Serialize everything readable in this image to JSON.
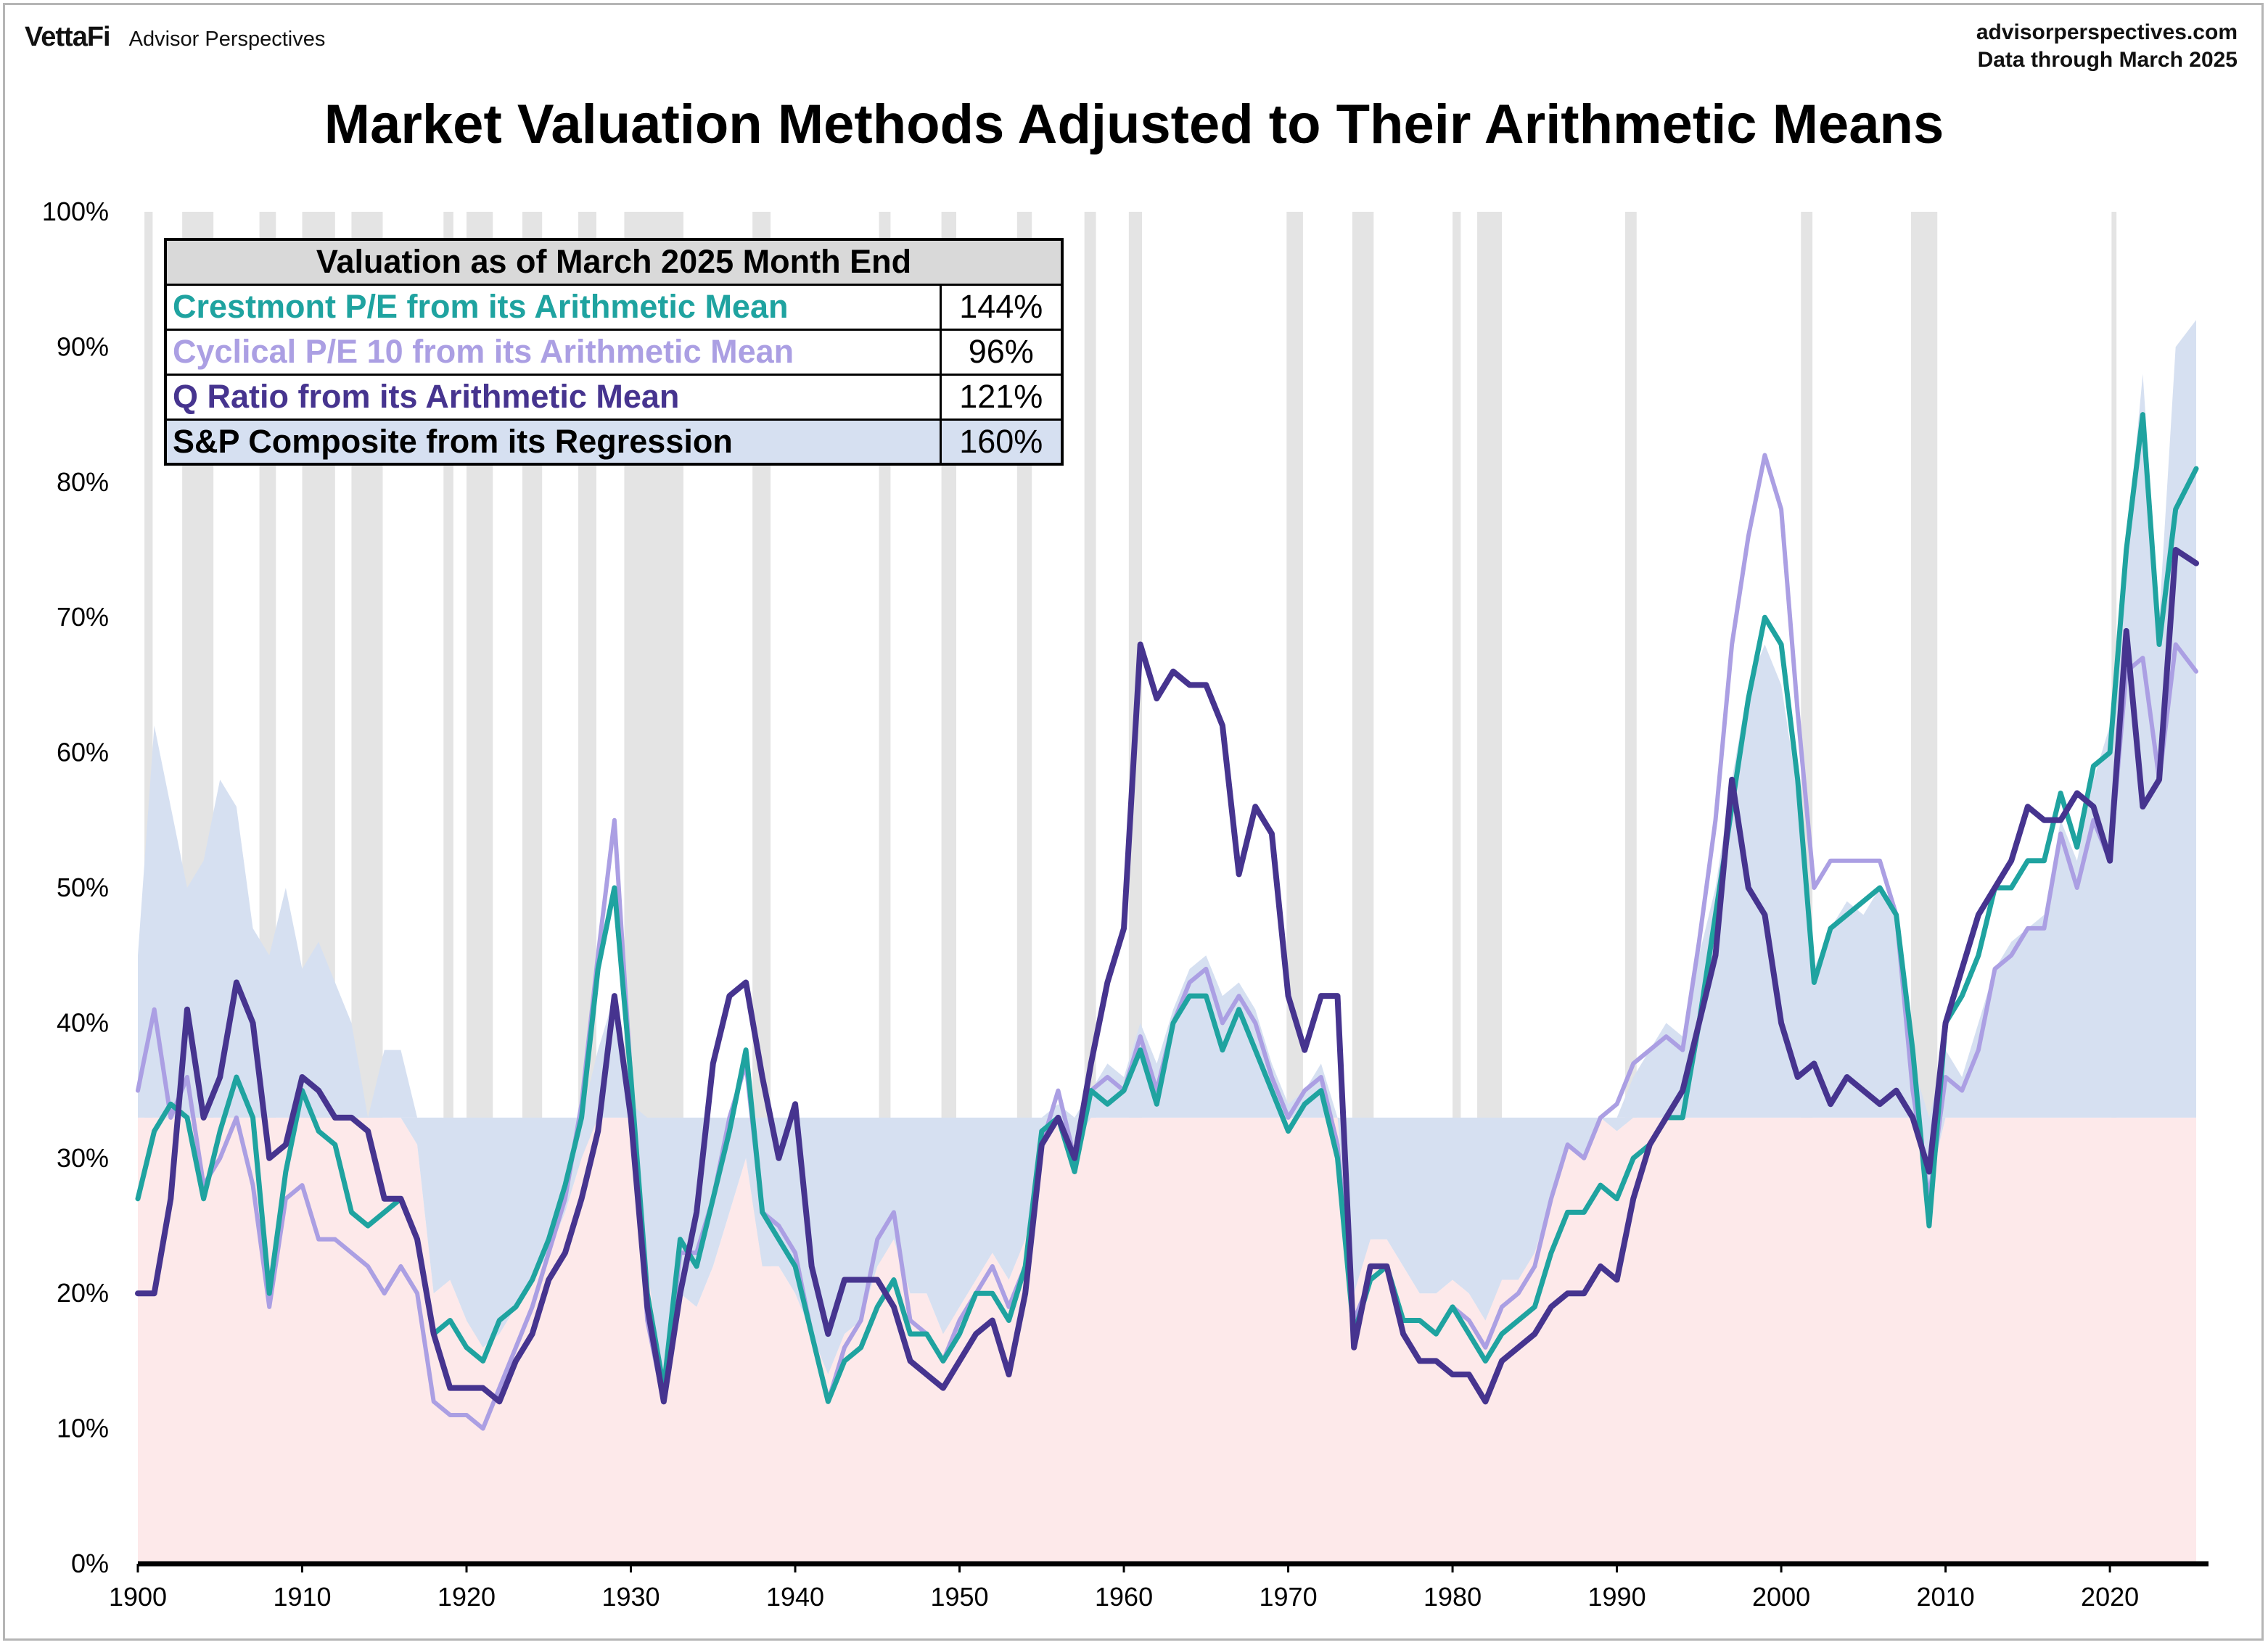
{
  "header": {
    "brand_logo": "VettaFi",
    "brand_sub": "Advisor Perspectives",
    "site": "advisorperspectives.com",
    "data_through": "Data through  March 2025",
    "title": "Market Valuation Methods Adjusted to Their Arithmetic Means"
  },
  "table": {
    "header": "Valuation as of March 2025 Month End",
    "rows": [
      {
        "label": "Crestmont P/E from its Arithmetic Mean",
        "value": "144%",
        "color": "#1fa3a0"
      },
      {
        "label": "Cyclical P/E 10 from its Arithmetic Mean",
        "value": "96%",
        "color": "#ab9fe3"
      },
      {
        "label": "Q Ratio from its Arithmetic Mean",
        "value": "121%",
        "color": "#46348f"
      },
      {
        "label": "S&P Composite from its Regression",
        "value": "160%",
        "color": "#000000"
      }
    ]
  },
  "chart_data": {
    "type": "line",
    "title": "Market Valuation Methods Adjusted to Their Arithmetic Means",
    "xlim": [
      1900,
      2026
    ],
    "ylim": [
      0,
      100
    ],
    "x_ticks": [
      "1900",
      "1910",
      "1920",
      "1930",
      "1940",
      "1950",
      "1960",
      "1970",
      "1980",
      "1990",
      "2000",
      "2010",
      "2020"
    ],
    "y_ticks": [
      "0%",
      "10%",
      "20%",
      "30%",
      "40%",
      "50%",
      "60%",
      "70%",
      "80%",
      "90%",
      "100%"
    ],
    "baseline": 33,
    "colors": {
      "crestmont": "#1fa3a0",
      "pe10": "#ab9fe3",
      "q": "#46348f",
      "sp_above": "#d6e0f1",
      "sp_below": "#fde9ea",
      "recession": "#e4e4e4"
    },
    "recessions": [
      [
        1900.4,
        1900.9
      ],
      [
        1902.7,
        1904.6
      ],
      [
        1907.4,
        1908.4
      ],
      [
        1910.0,
        1912.0
      ],
      [
        1913.0,
        1914.9
      ],
      [
        1918.6,
        1919.2
      ],
      [
        1920.0,
        1921.6
      ],
      [
        1923.4,
        1924.6
      ],
      [
        1926.8,
        1927.9
      ],
      [
        1929.6,
        1933.2
      ],
      [
        1937.4,
        1938.5
      ],
      [
        1945.1,
        1945.8
      ],
      [
        1948.9,
        1949.8
      ],
      [
        1953.5,
        1954.4
      ],
      [
        1957.6,
        1958.3
      ],
      [
        1960.3,
        1961.1
      ],
      [
        1969.9,
        1970.9
      ],
      [
        1973.9,
        1975.2
      ],
      [
        1980.0,
        1980.5
      ],
      [
        1981.5,
        1983.0
      ],
      [
        1990.5,
        1991.2
      ],
      [
        2001.2,
        2001.9
      ],
      [
        2007.9,
        2009.5
      ],
      [
        2020.1,
        2020.4
      ]
    ],
    "series": [
      {
        "name": "Crestmont P/E from its Arithmetic Mean",
        "key": "crestmont",
        "x": [
          1900,
          1901,
          1902,
          1903,
          1904,
          1905,
          1906,
          1907,
          1908,
          1909,
          1910,
          1911,
          1912,
          1913,
          1914,
          1915,
          1916,
          1917,
          1918,
          1919,
          1920,
          1921,
          1922,
          1923,
          1924,
          1925,
          1926,
          1927,
          1928,
          1929,
          1930,
          1931,
          1932,
          1933,
          1934,
          1935,
          1936,
          1937,
          1938,
          1939,
          1940,
          1941,
          1942,
          1943,
          1944,
          1945,
          1946,
          1947,
          1948,
          1949,
          1950,
          1951,
          1952,
          1953,
          1954,
          1955,
          1956,
          1957,
          1958,
          1959,
          1960,
          1961,
          1962,
          1963,
          1964,
          1965,
          1966,
          1967,
          1968,
          1969,
          1970,
          1971,
          1972,
          1973,
          1974,
          1975,
          1976,
          1977,
          1978,
          1979,
          1980,
          1981,
          1982,
          1983,
          1984,
          1985,
          1986,
          1987,
          1988,
          1989,
          1990,
          1991,
          1992,
          1993,
          1994,
          1995,
          1996,
          1997,
          1998,
          1999,
          2000,
          2001,
          2002,
          2003,
          2004,
          2005,
          2006,
          2007,
          2008,
          2009,
          2010,
          2011,
          2012,
          2013,
          2014,
          2015,
          2016,
          2017,
          2018,
          2019,
          2020,
          2021,
          2022,
          2023,
          2024,
          2025.25
        ],
        "values": [
          27,
          32,
          34,
          33,
          27,
          32,
          36,
          33,
          20,
          29,
          35,
          32,
          31,
          26,
          25,
          26,
          27,
          24,
          17,
          18,
          16,
          15,
          18,
          19,
          21,
          24,
          28,
          33,
          44,
          50,
          36,
          20,
          13,
          24,
          22,
          27,
          32,
          38,
          26,
          24,
          22,
          17,
          12,
          15,
          16,
          19,
          21,
          17,
          17,
          15,
          17,
          20,
          20,
          18,
          22,
          32,
          33,
          29,
          35,
          34,
          35,
          38,
          34,
          40,
          42,
          42,
          38,
          41,
          38,
          35,
          32,
          34,
          35,
          30,
          17,
          21,
          22,
          18,
          18,
          17,
          19,
          17,
          15,
          17,
          18,
          19,
          23,
          26,
          26,
          28,
          27,
          30,
          31,
          33,
          33,
          40,
          48,
          56,
          64,
          70,
          68,
          58,
          43,
          47,
          48,
          49,
          50,
          48,
          38,
          25,
          40,
          42,
          45,
          50,
          50,
          52,
          52,
          57,
          53,
          59,
          60,
          75,
          85,
          68,
          78,
          81
        ]
      },
      {
        "name": "Cyclical P/E 10 from its Arithmetic Mean",
        "key": "pe10",
        "x": [
          1900,
          1901,
          1902,
          1903,
          1904,
          1905,
          1906,
          1907,
          1908,
          1909,
          1910,
          1911,
          1912,
          1913,
          1914,
          1915,
          1916,
          1917,
          1918,
          1919,
          1920,
          1921,
          1922,
          1923,
          1924,
          1925,
          1926,
          1927,
          1928,
          1929,
          1930,
          1931,
          1932,
          1933,
          1934,
          1935,
          1936,
          1937,
          1938,
          1939,
          1940,
          1941,
          1942,
          1943,
          1944,
          1945,
          1946,
          1947,
          1948,
          1949,
          1950,
          1951,
          1952,
          1953,
          1954,
          1955,
          1956,
          1957,
          1958,
          1959,
          1960,
          1961,
          1962,
          1963,
          1964,
          1965,
          1966,
          1967,
          1968,
          1969,
          1970,
          1971,
          1972,
          1973,
          1974,
          1975,
          1976,
          1977,
          1978,
          1979,
          1980,
          1981,
          1982,
          1983,
          1984,
          1985,
          1986,
          1987,
          1988,
          1989,
          1990,
          1991,
          1992,
          1993,
          1994,
          1995,
          1996,
          1997,
          1998,
          1999,
          2000,
          2001,
          2002,
          2003,
          2004,
          2005,
          2006,
          2007,
          2008,
          2009,
          2010,
          2011,
          2012,
          2013,
          2014,
          2015,
          2016,
          2017,
          2018,
          2019,
          2020,
          2021,
          2022,
          2023,
          2024,
          2025.25
        ],
        "values": [
          35,
          41,
          33,
          36,
          28,
          30,
          33,
          28,
          19,
          27,
          28,
          24,
          24,
          23,
          22,
          20,
          22,
          20,
          12,
          11,
          11,
          10,
          13,
          16,
          19,
          23,
          27,
          34,
          45,
          55,
          36,
          18,
          12,
          23,
          23,
          27,
          33,
          37,
          26,
          25,
          23,
          17,
          12,
          16,
          18,
          24,
          26,
          18,
          17,
          15,
          18,
          20,
          22,
          19,
          22,
          31,
          35,
          30,
          35,
          36,
          35,
          39,
          35,
          40,
          43,
          44,
          40,
          42,
          40,
          36,
          33,
          35,
          36,
          31,
          18,
          21,
          22,
          18,
          18,
          17,
          19,
          18,
          16,
          19,
          20,
          22,
          27,
          31,
          30,
          33,
          34,
          37,
          38,
          39,
          38,
          46,
          55,
          68,
          76,
          82,
          78,
          63,
          50,
          52,
          52,
          52,
          52,
          48,
          35,
          27,
          36,
          35,
          38,
          44,
          45,
          47,
          47,
          54,
          50,
          55,
          52,
          66,
          67,
          58,
          68,
          66
        ]
      },
      {
        "name": "Q Ratio from its Arithmetic Mean",
        "key": "q",
        "x": [
          1900,
          1901,
          1902,
          1903,
          1904,
          1905,
          1906,
          1907,
          1908,
          1909,
          1910,
          1911,
          1912,
          1913,
          1914,
          1915,
          1916,
          1917,
          1918,
          1919,
          1920,
          1921,
          1922,
          1923,
          1924,
          1925,
          1926,
          1927,
          1928,
          1929,
          1930,
          1931,
          1932,
          1933,
          1934,
          1935,
          1936,
          1937,
          1938,
          1939,
          1940,
          1941,
          1942,
          1943,
          1944,
          1945,
          1946,
          1947,
          1948,
          1949,
          1950,
          1951,
          1952,
          1953,
          1954,
          1955,
          1956,
          1957,
          1958,
          1959,
          1960,
          1961,
          1962,
          1963,
          1964,
          1965,
          1966,
          1967,
          1968,
          1969,
          1970,
          1971,
          1972,
          1973,
          1974,
          1975,
          1976,
          1977,
          1978,
          1979,
          1980,
          1981,
          1982,
          1983,
          1984,
          1985,
          1986,
          1987,
          1988,
          1989,
          1990,
          1991,
          1992,
          1993,
          1994,
          1995,
          1996,
          1997,
          1998,
          1999,
          2000,
          2001,
          2002,
          2003,
          2004,
          2005,
          2006,
          2007,
          2008,
          2009,
          2010,
          2011,
          2012,
          2013,
          2014,
          2015,
          2016,
          2017,
          2018,
          2019,
          2020,
          2021,
          2022,
          2023,
          2024,
          2025.25
        ],
        "values": [
          20,
          20,
          27,
          41,
          33,
          36,
          43,
          40,
          30,
          31,
          36,
          35,
          33,
          33,
          32,
          27,
          27,
          24,
          17,
          13,
          13,
          13,
          12,
          15,
          17,
          21,
          23,
          27,
          32,
          42,
          33,
          19,
          12,
          20,
          26,
          37,
          42,
          43,
          36,
          30,
          34,
          22,
          17,
          21,
          21,
          21,
          19,
          15,
          14,
          13,
          15,
          17,
          18,
          14,
          20,
          31,
          33,
          30,
          37,
          43,
          47,
          68,
          64,
          66,
          65,
          65,
          62,
          51,
          56,
          54,
          42,
          38,
          42,
          42,
          16,
          22,
          22,
          17,
          15,
          15,
          14,
          14,
          12,
          15,
          16,
          17,
          19,
          20,
          20,
          22,
          21,
          27,
          31,
          33,
          35,
          40,
          45,
          58,
          50,
          48,
          40,
          36,
          37,
          34,
          36,
          35,
          34,
          35,
          33,
          29,
          40,
          44,
          48,
          50,
          52,
          56,
          55,
          55,
          57,
          56,
          52,
          69,
          56,
          58,
          75,
          74
        ]
      },
      {
        "name": "S&P Composite from its Regression",
        "key": "sp",
        "x": [
          1900,
          1901,
          1902,
          1903,
          1904,
          1905,
          1906,
          1907,
          1908,
          1909,
          1910,
          1911,
          1912,
          1913,
          1914,
          1915,
          1916,
          1917,
          1918,
          1919,
          1920,
          1921,
          1922,
          1923,
          1924,
          1925,
          1926,
          1927,
          1928,
          1929,
          1930,
          1931,
          1932,
          1933,
          1934,
          1935,
          1936,
          1937,
          1938,
          1939,
          1940,
          1941,
          1942,
          1943,
          1944,
          1945,
          1946,
          1947,
          1948,
          1949,
          1950,
          1951,
          1952,
          1953,
          1954,
          1955,
          1956,
          1957,
          1958,
          1959,
          1960,
          1961,
          1962,
          1963,
          1964,
          1965,
          1966,
          1967,
          1968,
          1969,
          1970,
          1971,
          1972,
          1973,
          1974,
          1975,
          1976,
          1977,
          1978,
          1979,
          1980,
          1981,
          1982,
          1983,
          1984,
          1985,
          1986,
          1987,
          1988,
          1989,
          1990,
          1991,
          1992,
          1993,
          1994,
          1995,
          1996,
          1997,
          1998,
          1999,
          2000,
          2001,
          2002,
          2003,
          2004,
          2005,
          2006,
          2007,
          2008,
          2009,
          2010,
          2011,
          2012,
          2013,
          2014,
          2015,
          2016,
          2017,
          2018,
          2019,
          2020,
          2021,
          2022,
          2023,
          2024,
          2025.25
        ],
        "values": [
          45,
          62,
          56,
          50,
          52,
          58,
          56,
          47,
          45,
          50,
          44,
          46,
          43,
          40,
          33,
          38,
          38,
          31,
          20,
          21,
          18,
          16,
          17,
          19,
          21,
          23,
          26,
          30,
          38,
          42,
          34,
          22,
          13,
          20,
          19,
          22,
          26,
          30,
          22,
          22,
          20,
          17,
          14,
          17,
          18,
          22,
          24,
          20,
          20,
          17,
          19,
          21,
          23,
          21,
          24,
          31,
          34,
          31,
          35,
          37,
          36,
          40,
          37,
          41,
          44,
          45,
          42,
          43,
          41,
          37,
          34,
          35,
          37,
          33,
          20,
          24,
          24,
          22,
          20,
          20,
          21,
          20,
          18,
          21,
          21,
          23,
          27,
          31,
          30,
          33,
          32,
          36,
          38,
          40,
          39,
          45,
          50,
          58,
          65,
          68,
          65,
          57,
          44,
          47,
          49,
          48,
          50,
          48,
          37,
          28,
          38,
          36,
          40,
          44,
          46,
          47,
          48,
          55,
          52,
          58,
          62,
          75,
          88,
          70,
          90,
          92
        ]
      }
    ]
  }
}
